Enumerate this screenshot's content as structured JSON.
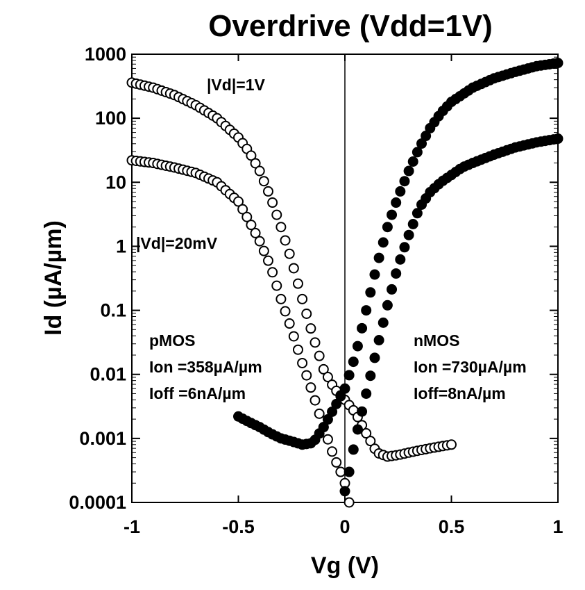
{
  "chart_data": {
    "type": "scatter",
    "title": "Overdrive (Vdd=1V)",
    "xlabel": "Vg (V)",
    "ylabel": "Id (µA/µm)",
    "xlim": [
      -1,
      1
    ],
    "ylim": [
      0.0001,
      1000
    ],
    "yscale": "log",
    "x_ticks": [
      -1,
      -0.5,
      0,
      0.5,
      1
    ],
    "x_tick_labels": [
      "-1",
      "-0.5",
      "0",
      "0.5",
      "1"
    ],
    "y_ticks": [
      0.0001,
      0.001,
      0.01,
      0.1,
      1,
      10,
      100,
      1000
    ],
    "y_tick_labels": [
      "0.0001",
      "0.001",
      "0.01",
      "0.1",
      "1",
      "10",
      "100",
      "1000"
    ],
    "series": [
      {
        "name": "pMOS |Vd|=1V",
        "marker": "open-circle",
        "x": [
          -1.0,
          -0.9,
          -0.8,
          -0.7,
          -0.6,
          -0.5,
          -0.45,
          -0.4,
          -0.35,
          -0.3,
          -0.25,
          -0.2,
          -0.15,
          -0.1,
          -0.05,
          0.0,
          0.05,
          0.1,
          0.15,
          0.2,
          0.25,
          0.3,
          0.35,
          0.4,
          0.45,
          0.5
        ],
        "y": [
          360,
          300,
          230,
          160,
          100,
          50,
          30,
          15,
          6,
          2,
          0.6,
          0.15,
          0.04,
          0.012,
          0.006,
          0.004,
          0.0025,
          0.0012,
          0.0006,
          0.00052,
          0.00055,
          0.0006,
          0.00065,
          0.0007,
          0.00075,
          0.0008
        ]
      },
      {
        "name": "pMOS |Vd|=20mV",
        "marker": "open-circle",
        "x": [
          -1.0,
          -0.9,
          -0.8,
          -0.7,
          -0.6,
          -0.55,
          -0.5,
          -0.45,
          -0.4,
          -0.35,
          -0.3,
          -0.25,
          -0.2,
          -0.15,
          -0.1,
          -0.05,
          -0.02,
          0.0,
          0.02
        ],
        "y": [
          22,
          20,
          17,
          14,
          10,
          7,
          5,
          2.5,
          1.2,
          0.5,
          0.15,
          0.05,
          0.015,
          0.005,
          0.0015,
          0.0005,
          0.0003,
          0.0002,
          0.0001
        ]
      },
      {
        "name": "nMOS Vd=1V",
        "marker": "filled-circle",
        "x": [
          -0.5,
          -0.45,
          -0.4,
          -0.35,
          -0.3,
          -0.25,
          -0.2,
          -0.15,
          -0.1,
          -0.05,
          0.0,
          0.05,
          0.1,
          0.15,
          0.2,
          0.25,
          0.3,
          0.35,
          0.4,
          0.45,
          0.5,
          0.6,
          0.7,
          0.8,
          0.9,
          1.0
        ],
        "y": [
          0.0022,
          0.0018,
          0.0015,
          0.0012,
          0.001,
          0.0009,
          0.0008,
          0.00085,
          0.0015,
          0.003,
          0.006,
          0.02,
          0.1,
          0.5,
          2,
          6,
          15,
          35,
          70,
          120,
          180,
          300,
          420,
          530,
          650,
          730
        ]
      },
      {
        "name": "nMOS Vd=20mV",
        "marker": "filled-circle",
        "x": [
          0.0,
          0.02,
          0.05,
          0.1,
          0.15,
          0.2,
          0.25,
          0.3,
          0.35,
          0.4,
          0.45,
          0.5,
          0.55,
          0.6,
          0.7,
          0.8,
          0.9,
          1.0
        ],
        "y": [
          0.00015,
          0.0003,
          0.001,
          0.005,
          0.025,
          0.12,
          0.5,
          1.5,
          4,
          7,
          10,
          13,
          17,
          20,
          27,
          35,
          42,
          48
        ]
      }
    ],
    "annotations": {
      "vd_high": "|Vd|=1V",
      "vd_low": "|Vd|=20mV",
      "pmos_name": "pMOS",
      "pmos_ion": "Ion =358µA/µm",
      "pmos_ioff": "Ioff =6nA/µm",
      "nmos_name": "nMOS",
      "nmos_ion": "Ion =730µA/µm",
      "nmos_ioff": "Ioff=8nA/µm"
    }
  }
}
